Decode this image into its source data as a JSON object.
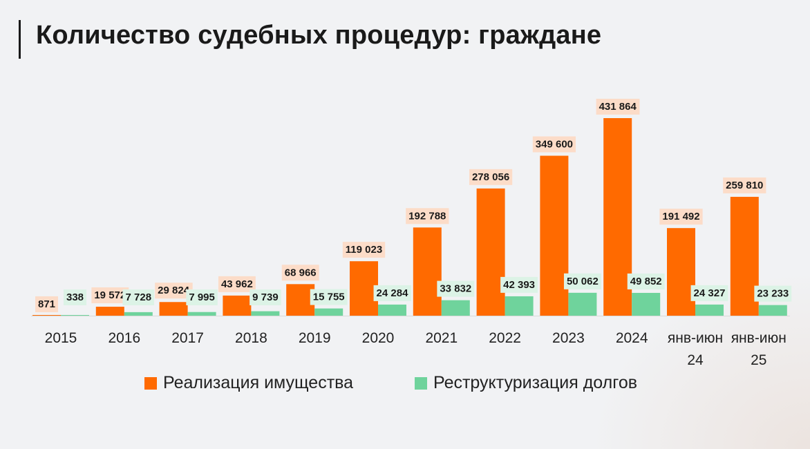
{
  "title": "Количество судебных процедур: граждане",
  "colors": {
    "series_1": "#ff6a00",
    "series_2": "#6fd39c",
    "label_bg_1": "#fcdcc8",
    "label_bg_2": "#dcf3e6"
  },
  "chart_data": {
    "type": "bar",
    "categories": [
      "2015",
      "2016",
      "2017",
      "2018",
      "2019",
      "2020",
      "2021",
      "2022",
      "2023",
      "2024",
      "янв-июн 24",
      "янв-июн 25"
    ],
    "series": [
      {
        "name": "Реализация имущества",
        "values": [
          871,
          19572,
          29824,
          43962,
          68966,
          119023,
          192788,
          278056,
          349600,
          431864,
          191492,
          259810
        ],
        "labels": [
          "871",
          "19 572",
          "29 824",
          "43 962",
          "68 966",
          "119 023",
          "192 788",
          "278 056",
          "349 600",
          "431 864",
          "191 492",
          "259 810"
        ]
      },
      {
        "name": "Реструктуризация долгов",
        "values": [
          338,
          7728,
          7995,
          9739,
          15755,
          24284,
          33832,
          42393,
          50062,
          49852,
          24327,
          23233
        ],
        "labels": [
          "338",
          "7 728",
          "7 995",
          "9 739",
          "15 755",
          "24 284",
          "33 832",
          "42 393",
          "50 062",
          "49 852",
          "24 327",
          "23 233"
        ]
      }
    ],
    "legend_position": "bottom",
    "grid": false
  }
}
